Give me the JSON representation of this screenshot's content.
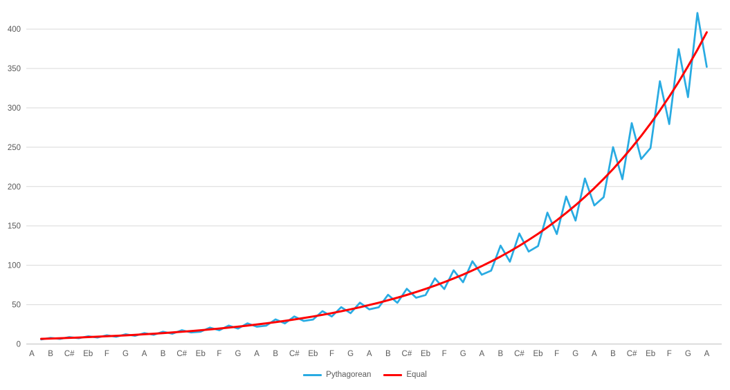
{
  "chart_data": {
    "type": "line",
    "title": "",
    "xlabel": "",
    "ylabel": "",
    "y_ticks": [
      0,
      50,
      100,
      150,
      200,
      250,
      300,
      350,
      400
    ],
    "ylim": [
      0,
      437
    ],
    "grid": "horizontal",
    "legend_position": "bottom-center",
    "x_labels": [
      "A",
      "B",
      "C#",
      "Eb",
      "F",
      "G",
      "A",
      "B",
      "C#",
      "Eb",
      "F",
      "G",
      "A",
      "B",
      "C#",
      "Eb",
      "F",
      "G",
      "A",
      "B",
      "C#",
      "Eb",
      "F",
      "G",
      "A",
      "B",
      "C#",
      "Eb",
      "F",
      "G",
      "A",
      "B",
      "C#",
      "Eb",
      "F",
      "G",
      "A"
    ],
    "x_label_every_n_categories": 2,
    "n_categories": 73,
    "series": [
      {
        "name": "Pythagorean",
        "color": "#29ABE2",
        "stroke_width": 2.75,
        "values": [
          null,
          5.83,
          7.81,
          6.54,
          8.77,
          7.34,
          9.84,
          8.24,
          11.05,
          9.25,
          12.4,
          10.38,
          13.92,
          11.65,
          15.63,
          13.08,
          17.54,
          14.68,
          15.56,
          20.86,
          17.46,
          23.41,
          19.6,
          26.28,
          22.0,
          23.31,
          31.25,
          26.16,
          35.08,
          29.37,
          31.11,
          41.72,
          34.92,
          46.83,
          39.2,
          52.56,
          44.0,
          46.62,
          62.51,
          52.33,
          70.16,
          58.73,
          62.23,
          83.44,
          69.85,
          93.66,
          78.4,
          105.13,
          88.0,
          93.23,
          125.01,
          104.65,
          140.32,
          117.47,
          124.45,
          166.88,
          139.69,
          187.31,
          156.8,
          210.25,
          176.0,
          186.46,
          250.03,
          209.3,
          280.65,
          234.94,
          248.9,
          333.75,
          279.39,
          374.62,
          313.6,
          420.5,
          352.0
        ]
      },
      {
        "name": "Equal",
        "color": "#FF0000",
        "stroke_width": 3,
        "values": [
          null,
          6.56,
          6.95,
          7.36,
          7.8,
          8.26,
          8.75,
          9.27,
          9.82,
          10.41,
          11.02,
          11.68,
          12.38,
          13.11,
          13.89,
          14.72,
          15.59,
          16.52,
          17.5,
          18.54,
          19.64,
          20.81,
          22.05,
          23.36,
          24.75,
          26.22,
          27.78,
          29.43,
          31.18,
          33.04,
          35.0,
          37.08,
          39.29,
          41.62,
          44.1,
          46.72,
          49.5,
          52.44,
          55.56,
          58.87,
          62.37,
          66.08,
          70.0,
          74.17,
          78.58,
          83.25,
          88.2,
          93.44,
          99.0,
          104.89,
          111.12,
          117.73,
          124.73,
          132.15,
          140.01,
          148.33,
          157.15,
          166.5,
          176.4,
          186.89,
          198.0,
          209.77,
          222.25,
          235.46,
          249.47,
          264.3,
          280.02,
          296.67,
          314.31,
          333.0,
          352.8,
          373.78,
          396.0
        ]
      }
    ],
    "colors": {
      "gridline": "#D9D9D9",
      "axis_line": "#BFBFBF",
      "tick_text": "#595959",
      "background": "#FFFFFF"
    }
  },
  "legend": {
    "items": [
      {
        "label": "Pythagorean"
      },
      {
        "label": "Equal"
      }
    ]
  }
}
